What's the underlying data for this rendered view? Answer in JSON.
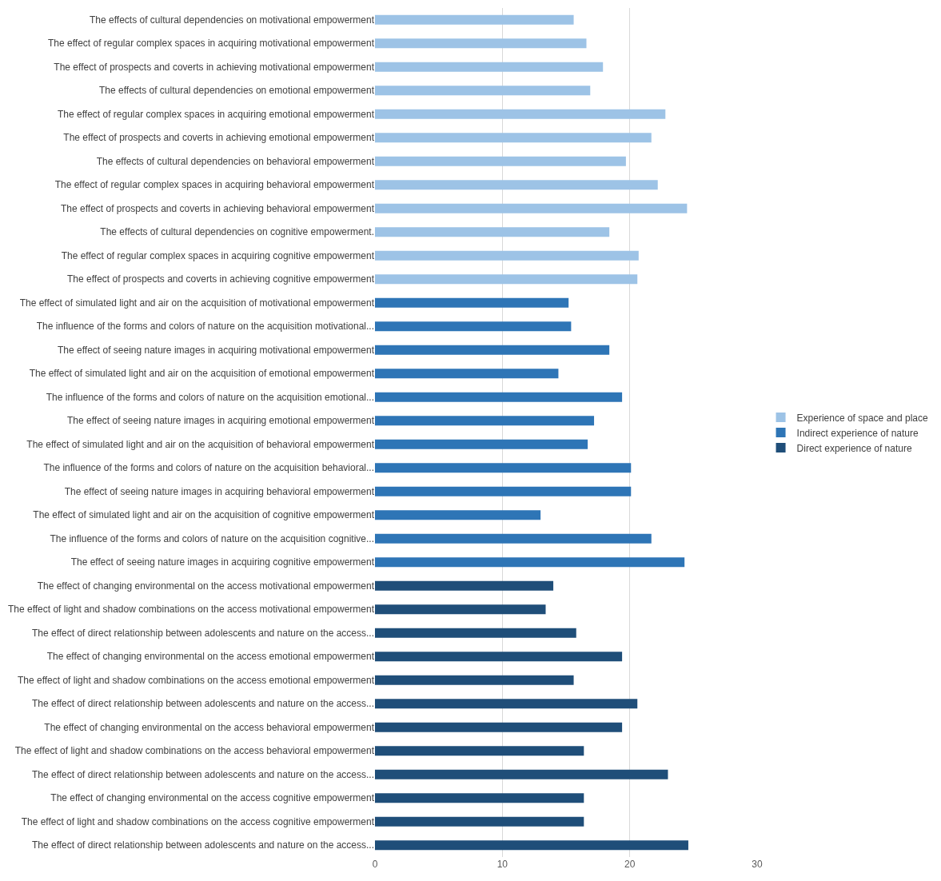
{
  "chart_data": {
    "type": "bar",
    "orientation": "horizontal",
    "categories": [
      "The effects of cultural dependencies on motivational empowerment",
      "The effect of regular complex spaces in acquiring motivational empowerment",
      "The effect of prospects and coverts in achieving motivational empowerment",
      "The effects of cultural dependencies on emotional empowerment",
      "The effect of regular complex spaces in acquiring emotional empowerment",
      "The effect of prospects and coverts in achieving emotional empowerment",
      "The effects of cultural dependencies on behavioral empowerment",
      "The effect of regular complex spaces in acquiring behavioral empowerment",
      "The effect of prospects and coverts in achieving behavioral empowerment",
      "The effects of cultural dependencies on cognitive empowerment.",
      "The effect of regular complex spaces in acquiring cognitive empowerment",
      "The effect of prospects and coverts in achieving cognitive empowerment",
      "The effect of simulated light and air on the acquisition of motivational empowerment",
      "The influence of the forms and colors of nature on the acquisition motivational...",
      "The effect of seeing nature images in acquiring motivational empowerment",
      "The effect of simulated light and air on the acquisition of emotional empowerment",
      "The influence of the forms and colors of nature on the acquisition emotional...",
      "The effect of seeing nature images in acquiring emotional empowerment",
      "The effect of simulated light and air on the acquisition of behavioral empowerment",
      "The influence of the forms and colors of nature on the acquisition behavioral...",
      "The effect of seeing nature images in acquiring behavioral empowerment",
      "The effect of simulated light and air on the acquisition of cognitive empowerment",
      "The influence of the forms and colors of nature on the acquisition cognitive...",
      "The effect of seeing nature images in acquiring cognitive empowerment",
      "The effect of changing environmental on the access motivational empowerment",
      "The effect of light and shadow combinations on the access motivational empowerment",
      "The effect of direct relationship between adolescents and nature on the access...",
      "The effect of changing environmental on the access emotional empowerment",
      "The effect of light and shadow combinations on the access emotional empowerment",
      "The effect of direct relationship between adolescents and nature on the access...",
      "The effect of changing environmental on the access behavioral empowerment",
      "The effect of light and shadow combinations on the access behavioral empowerment",
      "The effect of direct relationship between adolescents and nature on the access...",
      "The effect of changing environmental on the access cognitive empowerment",
      "The effect of light and shadow combinations on the access cognitive empowerment",
      "The effect of direct relationship between adolescents and nature on the access..."
    ],
    "series": [
      {
        "name": "Experience of space and place",
        "color": "#9dc3e6",
        "values": [
          15.6,
          16.6,
          17.9,
          16.9,
          22.8,
          21.7,
          19.7,
          22.2,
          24.5,
          18.4,
          20.7,
          20.6,
          null,
          null,
          null,
          null,
          null,
          null,
          null,
          null,
          null,
          null,
          null,
          null,
          null,
          null,
          null,
          null,
          null,
          null,
          null,
          null,
          null,
          null,
          null,
          null
        ]
      },
      {
        "name": "Indirect experience of nature",
        "color": "#2e75b6",
        "values": [
          null,
          null,
          null,
          null,
          null,
          null,
          null,
          null,
          null,
          null,
          null,
          null,
          15.2,
          15.4,
          18.4,
          14.4,
          19.4,
          17.2,
          16.7,
          20.1,
          20.1,
          13.0,
          21.7,
          24.3,
          null,
          null,
          null,
          null,
          null,
          null,
          null,
          null,
          null,
          null,
          null,
          null
        ]
      },
      {
        "name": "Direct experience of nature",
        "color": "#1f4e79",
        "values": [
          null,
          null,
          null,
          null,
          null,
          null,
          null,
          null,
          null,
          null,
          null,
          null,
          null,
          null,
          null,
          null,
          null,
          null,
          null,
          null,
          null,
          null,
          null,
          null,
          14.0,
          13.4,
          15.8,
          19.4,
          15.6,
          20.6,
          19.4,
          16.4,
          23.0,
          16.4,
          16.4,
          24.6
        ]
      }
    ],
    "xlim": [
      0,
      30
    ],
    "xticks": [
      0,
      10,
      20,
      30
    ],
    "grid": "x",
    "legend": "right"
  }
}
